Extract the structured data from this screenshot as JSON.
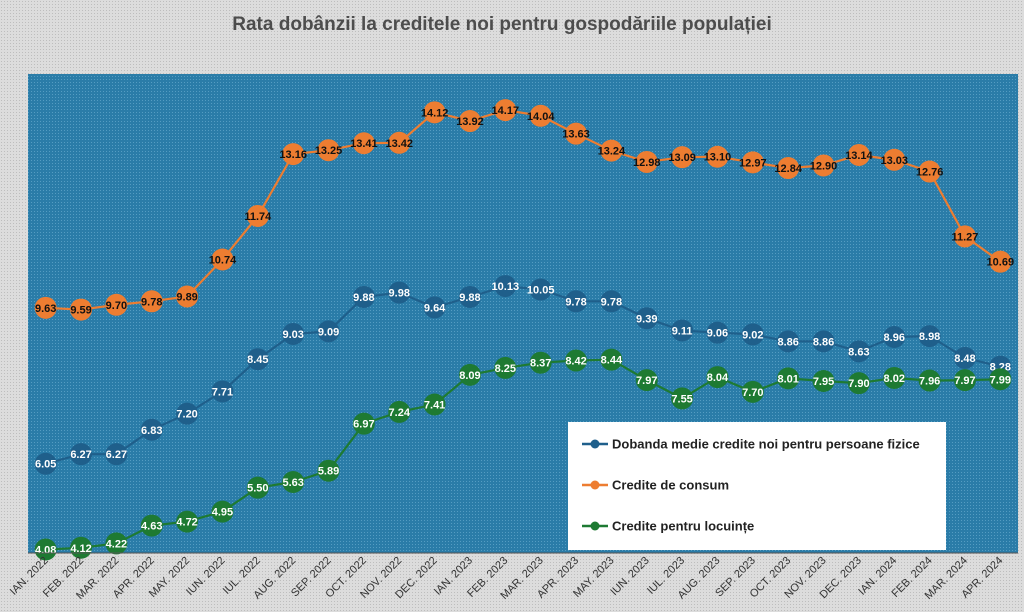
{
  "chart_data": {
    "type": "line",
    "title": "Rata dobânzii la creditele noi pentru gospodăriile populației",
    "categories": [
      "IAN. 2022",
      "FEB. 2022",
      "MAR. 2022",
      "APR. 2022",
      "MAY. 2022",
      "IUN. 2022",
      "IUL. 2022",
      "AUG. 2022",
      "SEP. 2022",
      "OCT. 2022",
      "NOV. 2022",
      "DEC. 2022",
      "IAN. 2023",
      "FEB. 2023",
      "MAR. 2023",
      "APR. 2023",
      "MAY. 2023",
      "IUN. 2023",
      "IUL. 2023",
      "AUG. 2023",
      "SEP. 2023",
      "OCT. 2023",
      "NOV. 2023",
      "DEC. 2023",
      "IAN. 2024",
      "FEB. 2024",
      "MAR. 2024",
      "APR. 2024"
    ],
    "series": [
      {
        "name": "Dobanda medie credite noi pentru persoane fizice",
        "color": "#1f5f8b",
        "label_color": "#ffffff",
        "values": [
          6.05,
          6.27,
          6.27,
          6.83,
          7.2,
          7.71,
          8.45,
          9.03,
          9.09,
          9.88,
          9.98,
          9.64,
          9.88,
          10.13,
          10.05,
          9.78,
          9.78,
          9.39,
          9.11,
          9.06,
          9.02,
          8.86,
          8.86,
          8.63,
          8.96,
          8.98,
          8.48,
          8.28
        ]
      },
      {
        "name": "Credite de consum",
        "color": "#ed7d31",
        "label_color": "#111111",
        "values": [
          9.63,
          9.59,
          9.7,
          9.78,
          9.89,
          10.74,
          11.74,
          13.16,
          13.25,
          13.41,
          13.42,
          14.12,
          13.92,
          14.17,
          14.04,
          13.63,
          13.24,
          12.98,
          13.09,
          13.1,
          12.97,
          12.84,
          12.9,
          13.14,
          13.03,
          12.76,
          11.27,
          10.69
        ]
      },
      {
        "name": "Credite pentru locuințe",
        "color": "#1e7a32",
        "label_color": "#ffffff",
        "values": [
          4.08,
          4.12,
          4.22,
          4.63,
          4.72,
          4.95,
          5.5,
          5.63,
          5.89,
          6.97,
          7.24,
          7.41,
          8.09,
          8.25,
          8.37,
          8.42,
          8.44,
          7.97,
          7.55,
          8.04,
          7.7,
          8.01,
          7.95,
          7.9,
          8.02,
          7.96,
          7.97,
          7.99
        ]
      }
    ],
    "ylim": [
      4.0,
      15.0
    ],
    "grid": false,
    "legend_position": "bottom-right",
    "plot_background": "#2a7ca8"
  }
}
